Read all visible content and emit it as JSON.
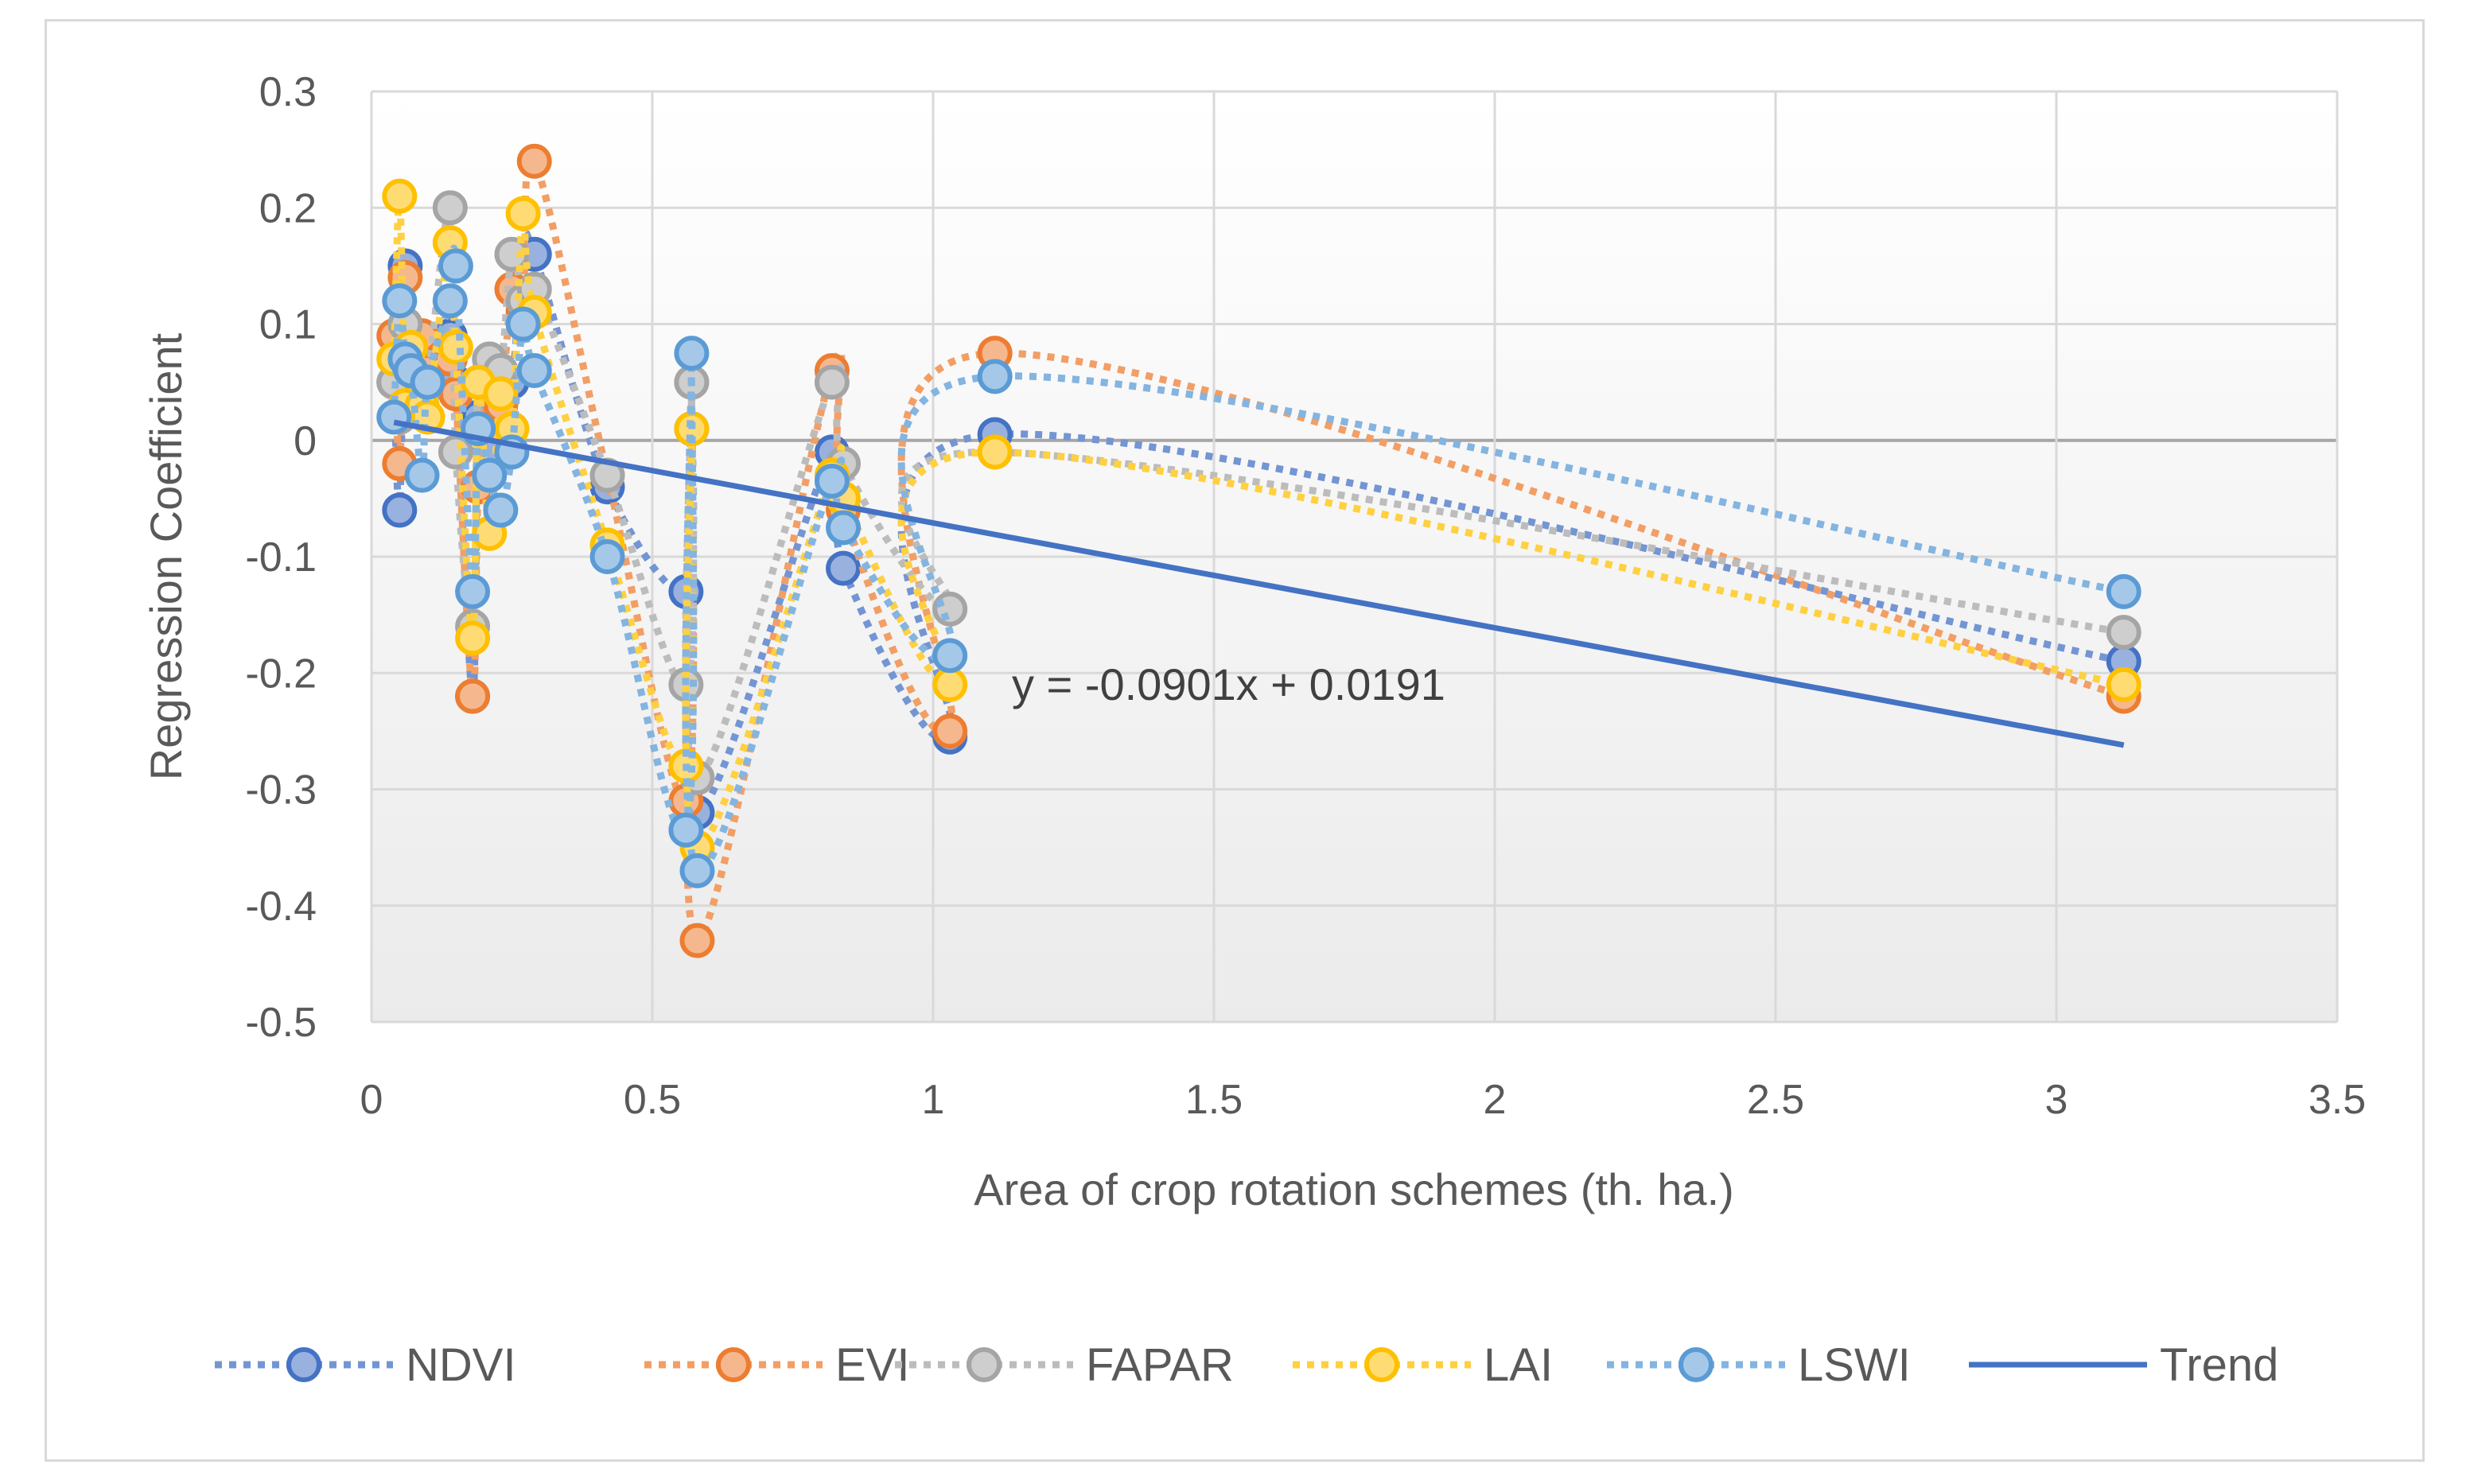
{
  "chart_data": {
    "type": "line",
    "title": "",
    "xlabel": "Area of crop rotation schemes (th. ha.)",
    "ylabel": "Regression Coefficient",
    "xlim": [
      0,
      3.5
    ],
    "ylim": [
      -0.5,
      0.3
    ],
    "x_ticks": [
      0,
      0.5,
      1,
      1.5,
      2,
      2.5,
      3,
      3.5
    ],
    "x_tick_labels": [
      "0",
      "0.5",
      "1",
      "1.5",
      "2",
      "2.5",
      "3",
      "3.5"
    ],
    "y_ticks": [
      0.3,
      0.2,
      0.1,
      0,
      -0.1,
      -0.2,
      -0.3,
      -0.4,
      -0.5
    ],
    "y_tick_labels": [
      "0.3",
      "0.2",
      "0.1",
      "0",
      "-0.1",
      "-0.2",
      "-0.3",
      "-0.4",
      "-0.5"
    ],
    "grid": true,
    "legend_position": "bottom",
    "x": [
      0.04,
      0.05,
      0.06,
      0.07,
      0.09,
      0.1,
      0.14,
      0.15,
      0.18,
      0.19,
      0.21,
      0.23,
      0.25,
      0.27,
      0.29,
      0.42,
      0.56,
      0.57,
      0.58,
      0.82,
      0.84,
      1.03,
      1.11,
      3.12
    ],
    "series": [
      {
        "name": "NDVI",
        "color": "#4472c4",
        "values": [
          0.05,
          -0.06,
          0.15,
          0.07,
          0.06,
          0.08,
          0.09,
          0.05,
          -0.22,
          0.02,
          -0.01,
          0.06,
          0.05,
          0.16,
          0.16,
          -0.04,
          -0.13,
          0.01,
          -0.32,
          -0.01,
          -0.11,
          -0.255,
          0.005,
          -0.19
        ]
      },
      {
        "name": "EVI",
        "color": "#ed7d31",
        "values": [
          0.09,
          -0.02,
          0.14,
          0.08,
          0.09,
          0.06,
          0.07,
          0.04,
          -0.22,
          -0.04,
          0.06,
          0.03,
          0.13,
          0.11,
          0.24,
          -0.03,
          -0.31,
          0.05,
          -0.43,
          0.06,
          -0.06,
          -0.25,
          0.075,
          -0.22
        ]
      },
      {
        "name": "FAPAR",
        "color": "#a5a5a5",
        "values": [
          0.05,
          0.02,
          0.1,
          0.06,
          0.04,
          0.05,
          0.2,
          -0.01,
          -0.16,
          0.05,
          0.07,
          0.06,
          0.16,
          0.12,
          0.13,
          -0.03,
          -0.21,
          0.05,
          -0.29,
          0.05,
          -0.02,
          -0.145,
          -0.01,
          -0.165
        ]
      },
      {
        "name": "LAI",
        "color": "#ffc000",
        "values": [
          0.07,
          0.21,
          0.03,
          0.08,
          0.03,
          0.02,
          0.17,
          0.08,
          -0.17,
          0.05,
          -0.08,
          0.04,
          0.01,
          0.195,
          0.11,
          -0.09,
          -0.28,
          0.01,
          -0.35,
          -0.03,
          -0.05,
          -0.21,
          -0.01,
          -0.21
        ]
      },
      {
        "name": "LSWI",
        "color": "#5b9bd5",
        "values": [
          0.02,
          0.12,
          0.07,
          0.06,
          -0.03,
          0.05,
          0.12,
          0.15,
          -0.13,
          0.01,
          -0.03,
          -0.06,
          -0.01,
          0.1,
          0.06,
          -0.1,
          -0.335,
          0.075,
          -0.37,
          -0.035,
          -0.075,
          -0.185,
          0.055,
          -0.13
        ]
      }
    ],
    "trend": {
      "name": "Trend",
      "color": "#4472c4",
      "slope": -0.0901,
      "intercept": 0.0191,
      "x_range": [
        0.04,
        3.12
      ]
    },
    "annotation": "y = -0.0901x + 0.0191"
  }
}
